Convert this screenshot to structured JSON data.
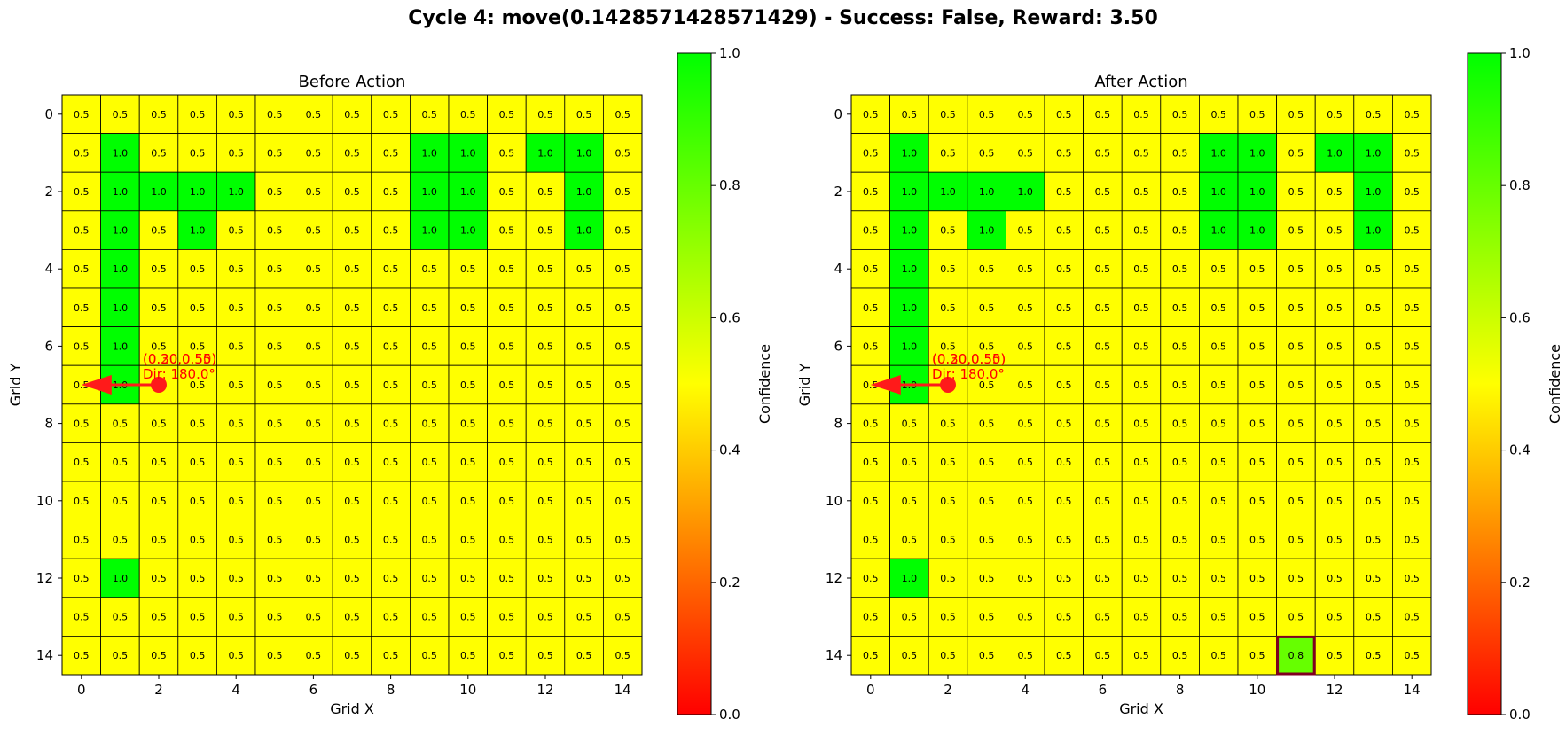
{
  "figure_title": "Cycle 4: move(0.1428571428571429) - Success: False, Reward: 3.50",
  "colors": {
    "colormap": [
      "#ff0000",
      "#ffff00",
      "#00ff00"
    ],
    "agent": "#ff1a1a",
    "annotation": "#ff0000",
    "highlight_border": "#800020",
    "cell_line": "#000000"
  },
  "colorbar": {
    "label": "Confidence",
    "ticks": [
      "0.0",
      "0.2",
      "0.4",
      "0.6",
      "0.8",
      "1.0"
    ]
  },
  "chart_data": [
    {
      "type": "heatmap",
      "title": "Before Action",
      "xlabel": "Grid X",
      "ylabel": "Grid Y",
      "xticks": [
        "0",
        "2",
        "4",
        "6",
        "8",
        "10",
        "12",
        "14"
      ],
      "yticks": [
        "0",
        "2",
        "4",
        "6",
        "8",
        "10",
        "12",
        "14"
      ],
      "vlim": [
        0.0,
        1.0
      ],
      "grid": [
        [
          0.5,
          0.5,
          0.5,
          0.5,
          0.5,
          0.5,
          0.5,
          0.5,
          0.5,
          0.5,
          0.5,
          0.5,
          0.5,
          0.5,
          0.5
        ],
        [
          0.5,
          1.0,
          0.5,
          0.5,
          0.5,
          0.5,
          0.5,
          0.5,
          0.5,
          1.0,
          1.0,
          0.5,
          1.0,
          1.0,
          0.5
        ],
        [
          0.5,
          1.0,
          1.0,
          1.0,
          1.0,
          0.5,
          0.5,
          0.5,
          0.5,
          1.0,
          1.0,
          0.5,
          0.5,
          1.0,
          0.5
        ],
        [
          0.5,
          1.0,
          0.5,
          1.0,
          0.5,
          0.5,
          0.5,
          0.5,
          0.5,
          1.0,
          1.0,
          0.5,
          0.5,
          1.0,
          0.5
        ],
        [
          0.5,
          1.0,
          0.5,
          0.5,
          0.5,
          0.5,
          0.5,
          0.5,
          0.5,
          0.5,
          0.5,
          0.5,
          0.5,
          0.5,
          0.5
        ],
        [
          0.5,
          1.0,
          0.5,
          0.5,
          0.5,
          0.5,
          0.5,
          0.5,
          0.5,
          0.5,
          0.5,
          0.5,
          0.5,
          0.5,
          0.5
        ],
        [
          0.5,
          1.0,
          0.5,
          0.5,
          0.5,
          0.5,
          0.5,
          0.5,
          0.5,
          0.5,
          0.5,
          0.5,
          0.5,
          0.5,
          0.5
        ],
        [
          0.5,
          1.0,
          0.5,
          0.5,
          0.5,
          0.5,
          0.5,
          0.5,
          0.5,
          0.5,
          0.5,
          0.5,
          0.5,
          0.5,
          0.5
        ],
        [
          0.5,
          0.5,
          0.5,
          0.5,
          0.5,
          0.5,
          0.5,
          0.5,
          0.5,
          0.5,
          0.5,
          0.5,
          0.5,
          0.5,
          0.5
        ],
        [
          0.5,
          0.5,
          0.5,
          0.5,
          0.5,
          0.5,
          0.5,
          0.5,
          0.5,
          0.5,
          0.5,
          0.5,
          0.5,
          0.5,
          0.5
        ],
        [
          0.5,
          0.5,
          0.5,
          0.5,
          0.5,
          0.5,
          0.5,
          0.5,
          0.5,
          0.5,
          0.5,
          0.5,
          0.5,
          0.5,
          0.5
        ],
        [
          0.5,
          0.5,
          0.5,
          0.5,
          0.5,
          0.5,
          0.5,
          0.5,
          0.5,
          0.5,
          0.5,
          0.5,
          0.5,
          0.5,
          0.5
        ],
        [
          0.5,
          1.0,
          0.5,
          0.5,
          0.5,
          0.5,
          0.5,
          0.5,
          0.5,
          0.5,
          0.5,
          0.5,
          0.5,
          0.5,
          0.5
        ],
        [
          0.5,
          0.5,
          0.5,
          0.5,
          0.5,
          0.5,
          0.5,
          0.5,
          0.5,
          0.5,
          0.5,
          0.5,
          0.5,
          0.5,
          0.5
        ],
        [
          0.5,
          0.5,
          0.5,
          0.5,
          0.5,
          0.5,
          0.5,
          0.5,
          0.5,
          0.5,
          0.5,
          0.5,
          0.5,
          0.5,
          0.5
        ]
      ],
      "agent": {
        "x": 2,
        "y": 7,
        "arrow_to_x": 0.5,
        "arrow_to_y": 7,
        "label_line1": "(0.30,0.55)",
        "label_line2": "Dir: 180.0°",
        "overlap_label": "(0.20,0.50)"
      },
      "highlight_cell": null
    },
    {
      "type": "heatmap",
      "title": "After Action",
      "xlabel": "Grid X",
      "ylabel": "Grid Y",
      "xticks": [
        "0",
        "2",
        "4",
        "6",
        "8",
        "10",
        "12",
        "14"
      ],
      "yticks": [
        "0",
        "2",
        "4",
        "6",
        "8",
        "10",
        "12",
        "14"
      ],
      "vlim": [
        0.0,
        1.0
      ],
      "grid": [
        [
          0.5,
          0.5,
          0.5,
          0.5,
          0.5,
          0.5,
          0.5,
          0.5,
          0.5,
          0.5,
          0.5,
          0.5,
          0.5,
          0.5,
          0.5
        ],
        [
          0.5,
          1.0,
          0.5,
          0.5,
          0.5,
          0.5,
          0.5,
          0.5,
          0.5,
          1.0,
          1.0,
          0.5,
          1.0,
          1.0,
          0.5
        ],
        [
          0.5,
          1.0,
          1.0,
          1.0,
          1.0,
          0.5,
          0.5,
          0.5,
          0.5,
          1.0,
          1.0,
          0.5,
          0.5,
          1.0,
          0.5
        ],
        [
          0.5,
          1.0,
          0.5,
          1.0,
          0.5,
          0.5,
          0.5,
          0.5,
          0.5,
          1.0,
          1.0,
          0.5,
          0.5,
          1.0,
          0.5
        ],
        [
          0.5,
          1.0,
          0.5,
          0.5,
          0.5,
          0.5,
          0.5,
          0.5,
          0.5,
          0.5,
          0.5,
          0.5,
          0.5,
          0.5,
          0.5
        ],
        [
          0.5,
          1.0,
          0.5,
          0.5,
          0.5,
          0.5,
          0.5,
          0.5,
          0.5,
          0.5,
          0.5,
          0.5,
          0.5,
          0.5,
          0.5
        ],
        [
          0.5,
          1.0,
          0.5,
          0.5,
          0.5,
          0.5,
          0.5,
          0.5,
          0.5,
          0.5,
          0.5,
          0.5,
          0.5,
          0.5,
          0.5
        ],
        [
          0.5,
          1.0,
          0.5,
          0.5,
          0.5,
          0.5,
          0.5,
          0.5,
          0.5,
          0.5,
          0.5,
          0.5,
          0.5,
          0.5,
          0.5
        ],
        [
          0.5,
          0.5,
          0.5,
          0.5,
          0.5,
          0.5,
          0.5,
          0.5,
          0.5,
          0.5,
          0.5,
          0.5,
          0.5,
          0.5,
          0.5
        ],
        [
          0.5,
          0.5,
          0.5,
          0.5,
          0.5,
          0.5,
          0.5,
          0.5,
          0.5,
          0.5,
          0.5,
          0.5,
          0.5,
          0.5,
          0.5
        ],
        [
          0.5,
          0.5,
          0.5,
          0.5,
          0.5,
          0.5,
          0.5,
          0.5,
          0.5,
          0.5,
          0.5,
          0.5,
          0.5,
          0.5,
          0.5
        ],
        [
          0.5,
          0.5,
          0.5,
          0.5,
          0.5,
          0.5,
          0.5,
          0.5,
          0.5,
          0.5,
          0.5,
          0.5,
          0.5,
          0.5,
          0.5
        ],
        [
          0.5,
          1.0,
          0.5,
          0.5,
          0.5,
          0.5,
          0.5,
          0.5,
          0.5,
          0.5,
          0.5,
          0.5,
          0.5,
          0.5,
          0.5
        ],
        [
          0.5,
          0.5,
          0.5,
          0.5,
          0.5,
          0.5,
          0.5,
          0.5,
          0.5,
          0.5,
          0.5,
          0.5,
          0.5,
          0.5,
          0.5
        ],
        [
          0.5,
          0.5,
          0.5,
          0.5,
          0.5,
          0.5,
          0.5,
          0.5,
          0.5,
          0.5,
          0.5,
          0.8,
          0.5,
          0.5,
          0.5
        ]
      ],
      "agent": {
        "x": 2,
        "y": 7,
        "arrow_to_x": 0.5,
        "arrow_to_y": 7,
        "label_line1": "(0.30,0.55)",
        "label_line2": "Dir: 180.0°",
        "overlap_label": "(0.20,0.50)"
      },
      "highlight_cell": {
        "x": 11,
        "y": 14
      }
    }
  ]
}
